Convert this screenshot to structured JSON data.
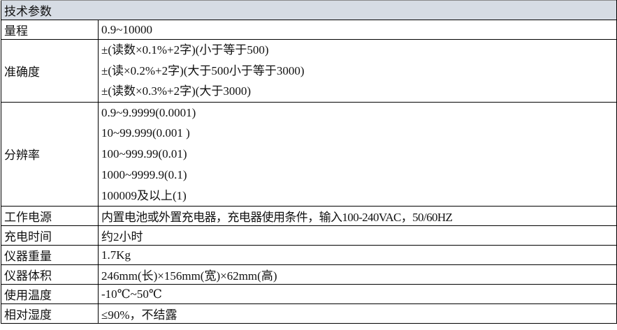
{
  "header": "技术参数",
  "rows": [
    {
      "label": "量程",
      "values": [
        "0.9~10000"
      ]
    },
    {
      "label": "准确度",
      "values": [
        "±(读数×0.1%+2字)(小于等于500)",
        "±(读×0.2%+2字)(大于500小于等于3000)",
        "±(读数×0.3%+2字)(大于3000)"
      ]
    },
    {
      "label": "分辨率",
      "values": [
        "0.9~9.9999(0.0001)",
        "10~99.999(0.001 )",
        "100~999.99(0.01)",
        "1000~9999.9(0.1)",
        "100009及以上(1)"
      ]
    },
    {
      "label": "工作电源",
      "values": [
        "内置电池或外置充电器，充电器使用条件，输入100-240VAC，50/60HZ"
      ]
    },
    {
      "label": "充电时间",
      "values": [
        "约2小时"
      ]
    },
    {
      "label": "仪器重量",
      "values": [
        "1.7Kg"
      ]
    },
    {
      "label": "仪器体积",
      "values": [
        "246mm(长)×156mm(宽)×62mm(高)"
      ]
    },
    {
      "label": "使用温度",
      "values": [
        "-10℃~50℃"
      ]
    },
    {
      "label": "相对湿度",
      "values": [
        "≤90%，不结露"
      ]
    }
  ]
}
